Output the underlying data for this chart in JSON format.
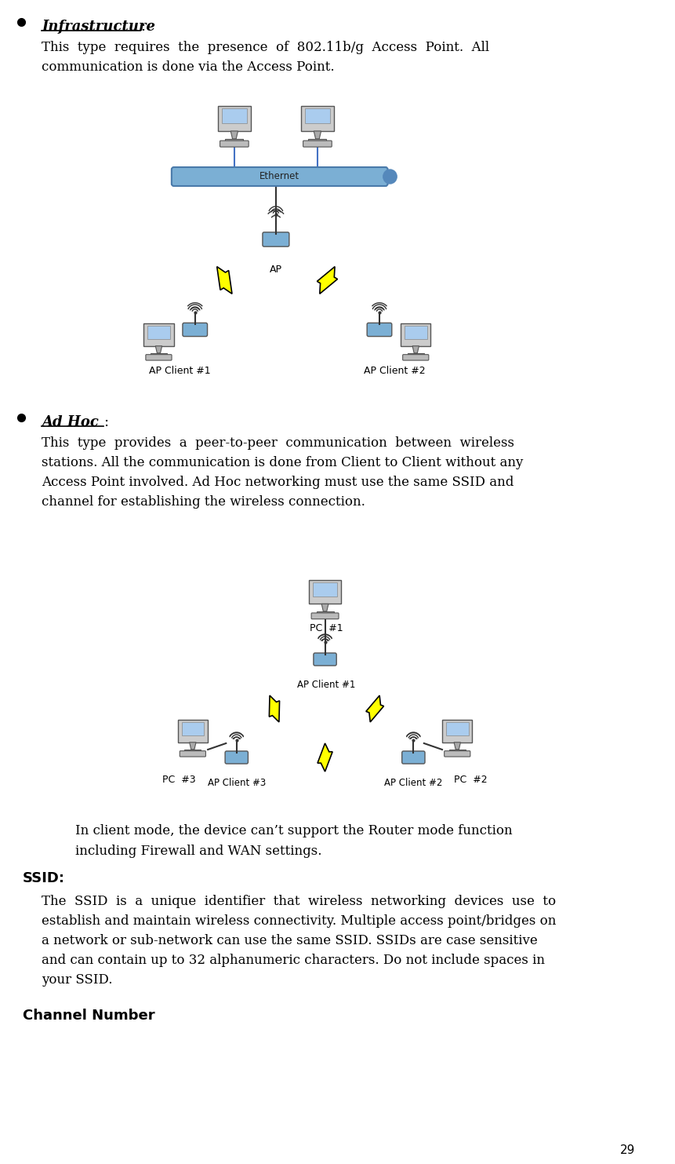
{
  "page_number": "29",
  "background_color": "#ffffff",
  "text_color": "#000000",
  "bullet1_title": "Infrastructure",
  "bullet1_colon": ":",
  "bullet1_body1": "This  type  requires  the  presence  of  802.11b/g  Access  Point.  All",
  "bullet1_body2": "communication is done via the Access Point.",
  "bullet2_title": "Ad Hoc",
  "bullet2_colon": ":",
  "bullet2_body1": "This  type  provides  a  peer-to-peer  communication  between  wireless",
  "bullet2_body2": "stations. All the communication is done from Client to Client without any",
  "bullet2_body3": "Access Point involved. Ad Hoc networking must use the same SSID and",
  "bullet2_body4": "channel for establishing the wireless connection.",
  "note_body1": "In client mode, the device can’t support the Router mode function",
  "note_body2": "including Firewall and WAN settings.",
  "ssid_label": "SSID:",
  "ssid_body1": "The  SSID  is  a  unique  identifier  that  wireless  networking  devices  use  to",
  "ssid_body2": "establish and maintain wireless connectivity. Multiple access point/bridges on",
  "ssid_body3": "a network or sub-network can use the same SSID. SSIDs are case sensitive",
  "ssid_body4": "and can contain up to 32 alphanumeric characters. Do not include spaces in",
  "ssid_body5": "your SSID.",
  "channel_label": "Channel Number",
  "ethernet_color": "#7bafd4",
  "ethernet_label": "Ethernet",
  "ap_label": "AP",
  "ap_client1_label": "AP Client #1",
  "ap_client2_label": "AP Client #2",
  "pc1_label": "PC  #1",
  "pc2_label": "PC  #2",
  "pc3_label": "PC  #3",
  "adhoc_ap_client1_label": "AP Client #1",
  "adhoc_ap_client2_label": "AP Client #2",
  "adhoc_ap_client3_label": "AP Client #3",
  "line_color": "#4472c4",
  "bolt_color": "#ffff00",
  "bolt_edge_color": "#000000"
}
